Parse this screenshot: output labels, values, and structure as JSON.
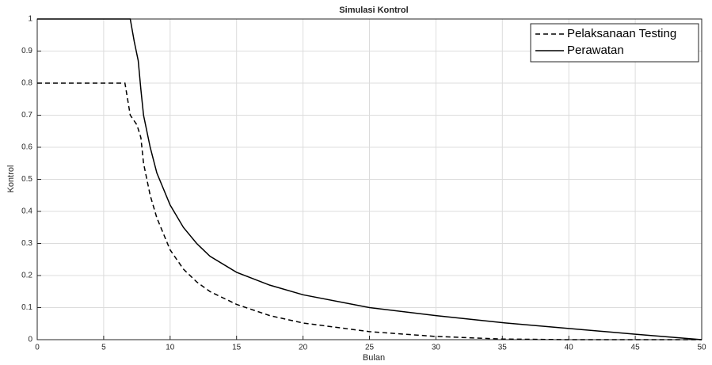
{
  "chart_data": {
    "type": "line",
    "title": "Simulasi Kontrol",
    "x_label": "Bulan",
    "y_label": "Kontrol",
    "xlim": [
      0,
      50
    ],
    "ylim": [
      0,
      1
    ],
    "xticks": [
      0,
      5,
      10,
      15,
      20,
      25,
      30,
      35,
      40,
      45,
      50
    ],
    "yticks": [
      0,
      0.1,
      0.2,
      0.3,
      0.4,
      0.5,
      0.6,
      0.7,
      0.8,
      0.9,
      1
    ],
    "grid": true,
    "legend": "top-right",
    "series": [
      {
        "name": "Pelaksanaan Testing",
        "color": "#000000",
        "dash": "dashed",
        "x": [
          0,
          6.6,
          7,
          7.5,
          7.8,
          8,
          8.5,
          9,
          10,
          11,
          12,
          13,
          15,
          17.5,
          20,
          25,
          30,
          35,
          40,
          45,
          50
        ],
        "values": [
          0.8,
          0.8,
          0.7,
          0.67,
          0.63,
          0.55,
          0.45,
          0.38,
          0.28,
          0.22,
          0.18,
          0.15,
          0.11,
          0.075,
          0.052,
          0.025,
          0.01,
          0.002,
          0,
          0,
          0
        ]
      },
      {
        "name": "Perawatan",
        "color": "#000000",
        "dash": "solid",
        "x": [
          0,
          7,
          7.3,
          7.6,
          7.8,
          8,
          8.5,
          9,
          10,
          11,
          12,
          13,
          15,
          17.5,
          20,
          25,
          30,
          35,
          40,
          45,
          50
        ],
        "values": [
          1,
          1,
          0.93,
          0.87,
          0.78,
          0.7,
          0.6,
          0.52,
          0.42,
          0.35,
          0.3,
          0.26,
          0.21,
          0.17,
          0.14,
          0.1,
          0.075,
          0.053,
          0.035,
          0.017,
          0
        ]
      }
    ]
  }
}
